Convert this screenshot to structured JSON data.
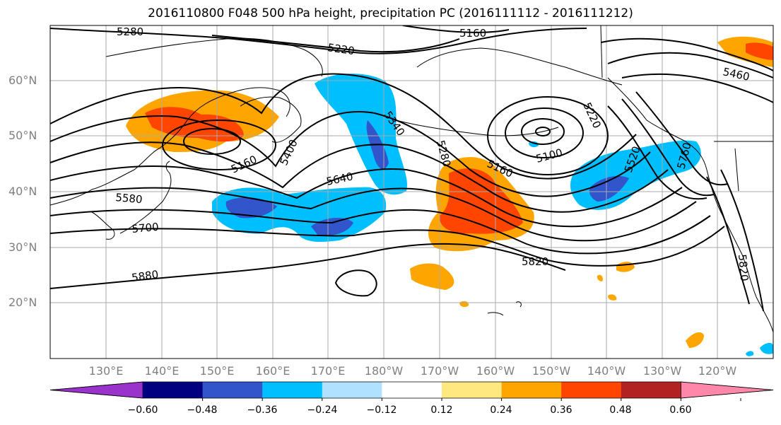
{
  "title": "2016110800 F048 500 hPa height, precipitation PC (2016111112 - 2016111212)",
  "lat_labels": [
    "60°N",
    "50°N",
    "40°N",
    "30°N",
    "20°N"
  ],
  "lon_labels": [
    "130°E",
    "140°E",
    "150°E",
    "160°E",
    "170°E",
    "180°W",
    "170°W",
    "160°W",
    "150°W",
    "140°W",
    "130°W",
    "120°W"
  ],
  "contour_labels": [
    "5280",
    "5160",
    "5220",
    "5460",
    "5340",
    "5280",
    "5220",
    "5400",
    "5160",
    "5100",
    "5160",
    "5520",
    "5640",
    "5580",
    "5700",
    "5820",
    "5880",
    "5820",
    "5760"
  ],
  "colorbar": {
    "colors": [
      "#9933cc",
      "#000080",
      "#3355cc",
      "#00bfff",
      "#b0e2ff",
      "#ffffff",
      "#ffe880",
      "#ffa500",
      "#ff4500",
      "#b22222",
      "#ff88aa"
    ],
    "tick_labels": [
      "−0.60",
      "−0.48",
      "−0.36",
      "−0.24",
      "−0.12",
      "0.12",
      "0.24",
      "0.36",
      "0.48",
      "0.60"
    ]
  }
}
